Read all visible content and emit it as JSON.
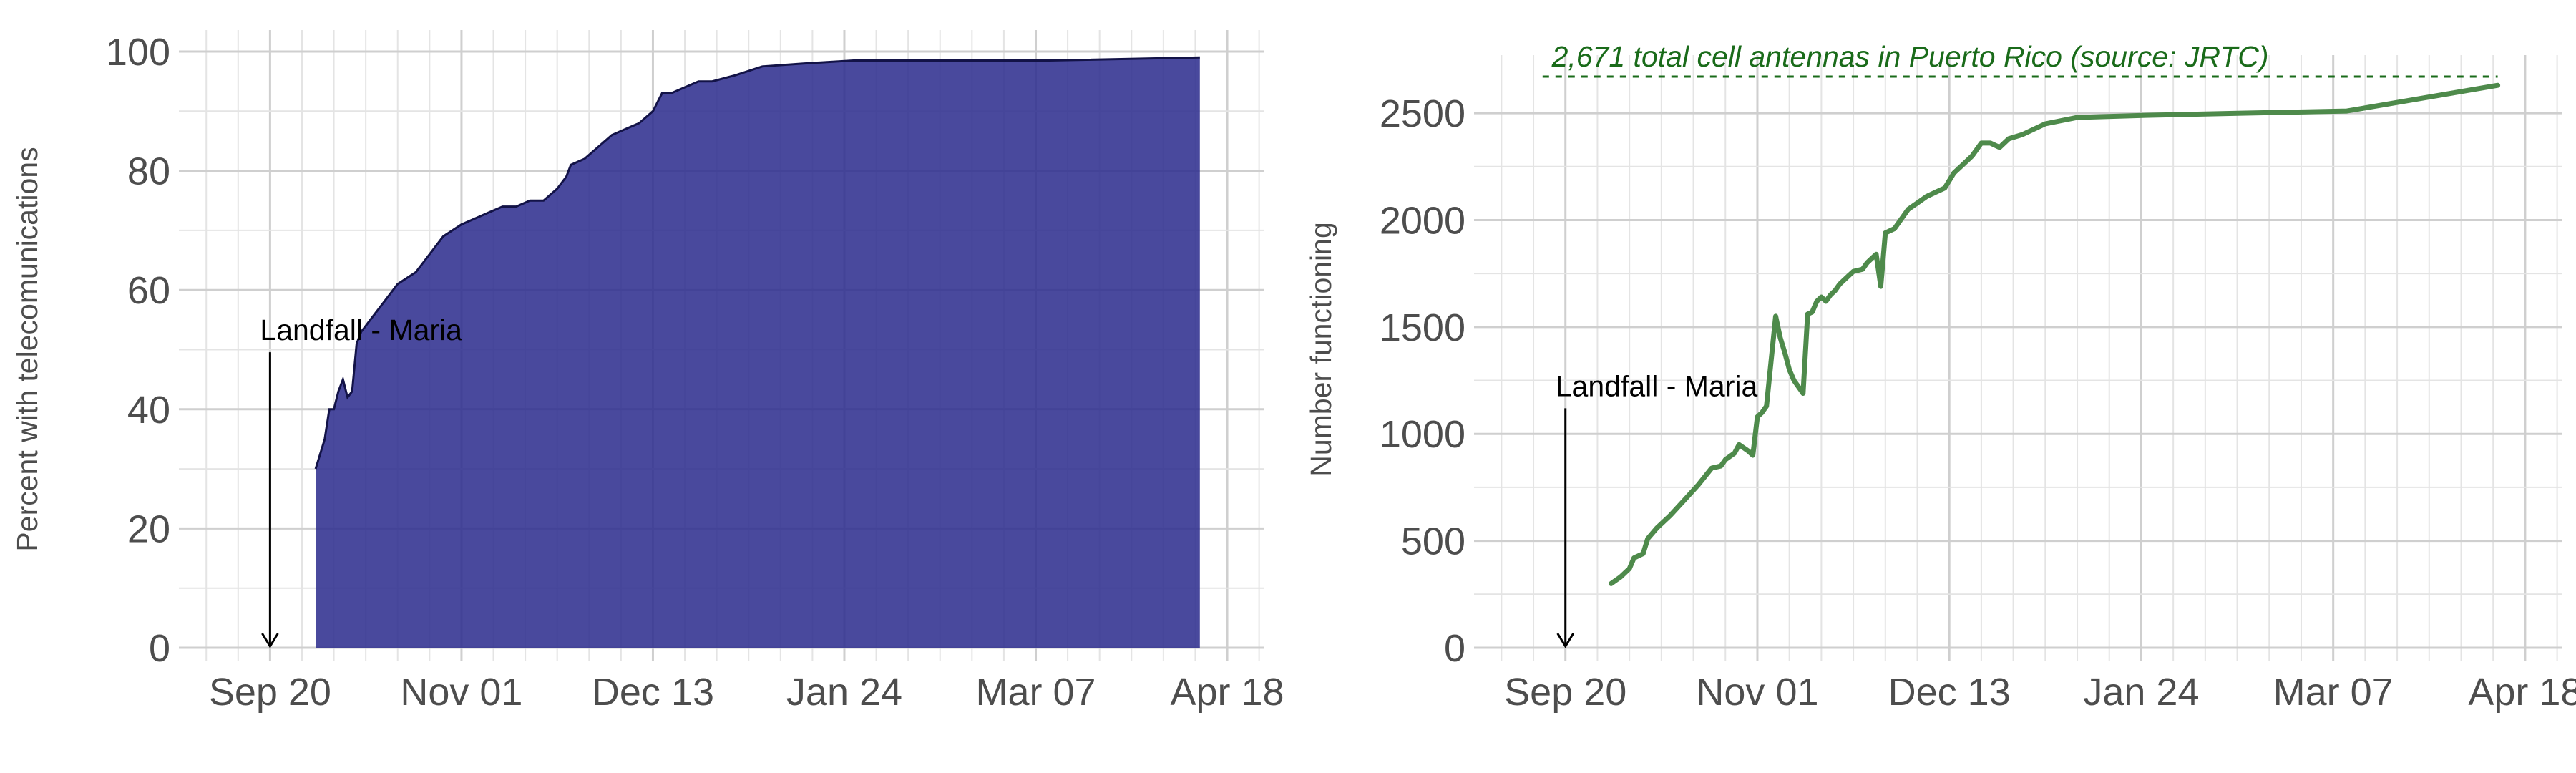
{
  "chart_data": [
    {
      "type": "area",
      "xlabel": "",
      "ylabel": "Percent with telecomunications",
      "x_tick_labels": [
        "Sep 20",
        "Nov 01",
        "Dec 13",
        "Jan 24",
        "Mar 07",
        "Apr 18"
      ],
      "y_tick_labels": [
        "0",
        "20",
        "40",
        "60",
        "80",
        "100"
      ],
      "ylim": [
        0,
        100
      ],
      "grid": true,
      "fill_color": "#2E2E8E",
      "line_color": "#131347",
      "annotation": {
        "label": "Landfall - Maria",
        "x": "Sep 20",
        "arrow": "down"
      },
      "series": [
        {
          "x": [
            "2017-09-30",
            "2017-10-02",
            "2017-10-03",
            "2017-10-04",
            "2017-10-05",
            "2017-10-06",
            "2017-10-07",
            "2017-10-08",
            "2017-10-09",
            "2017-10-10",
            "2017-10-11",
            "2017-10-12",
            "2017-10-14",
            "2017-10-16",
            "2017-10-18",
            "2017-10-20",
            "2017-10-22",
            "2017-10-24",
            "2017-10-26",
            "2017-10-28",
            "2017-10-30",
            "2017-11-01",
            "2017-11-04",
            "2017-11-07",
            "2017-11-10",
            "2017-11-13",
            "2017-11-16",
            "2017-11-19",
            "2017-11-22",
            "2017-11-24",
            "2017-11-25",
            "2017-11-28",
            "2017-12-01",
            "2017-12-04",
            "2017-12-07",
            "2017-12-10",
            "2017-12-13",
            "2017-12-15",
            "2017-12-17",
            "2017-12-20",
            "2017-12-23",
            "2017-12-26",
            "2017-12-31",
            "2018-01-06",
            "2018-01-15",
            "2018-01-26",
            "2018-02-15",
            "2018-03-10",
            "2018-04-12"
          ],
          "values": [
            30,
            35,
            40,
            40,
            43,
            45,
            42,
            43,
            51,
            53,
            54,
            55,
            57,
            59,
            61,
            62,
            63,
            65,
            67,
            69,
            70,
            71,
            72,
            73,
            74,
            74,
            75,
            75,
            77,
            79,
            81,
            82,
            84,
            86,
            87,
            88,
            90,
            93,
            93,
            94,
            95,
            95,
            96,
            97.5,
            98,
            98.5,
            98.5,
            98.5,
            99
          ]
        }
      ]
    },
    {
      "type": "line",
      "xlabel": "",
      "ylabel": "Number functioning",
      "x_tick_labels": [
        "Sep 20",
        "Nov 01",
        "Dec 13",
        "Jan 24",
        "Mar 07",
        "Apr 18"
      ],
      "y_tick_labels": [
        "0",
        "500",
        "1000",
        "1500",
        "2000",
        "2500"
      ],
      "ylim": [
        0,
        2671
      ],
      "grid": true,
      "line_color": "#4E8A4B",
      "annotation": {
        "label": "Landfall - Maria",
        "x": "Sep 20",
        "arrow": "down"
      },
      "reference_line": {
        "value": 2671,
        "label": "2,671 total cell antennas in Puerto Rico (source: JRTC)",
        "color": "#1A6B1A",
        "style": "dashed"
      },
      "series": [
        {
          "x": [
            "2017-09-30",
            "2017-10-02",
            "2017-10-04",
            "2017-10-05",
            "2017-10-07",
            "2017-10-08",
            "2017-10-10",
            "2017-10-13",
            "2017-10-16",
            "2017-10-19",
            "2017-10-22",
            "2017-10-24",
            "2017-10-25",
            "2017-10-27",
            "2017-10-28",
            "2017-10-30",
            "2017-10-31",
            "2017-11-01",
            "2017-11-02",
            "2017-11-03",
            "2017-11-05",
            "2017-11-06",
            "2017-11-07",
            "2017-11-08",
            "2017-11-09",
            "2017-11-11",
            "2017-11-12",
            "2017-11-13",
            "2017-11-14",
            "2017-11-15",
            "2017-11-16",
            "2017-11-17",
            "2017-11-18",
            "2017-11-19",
            "2017-11-20",
            "2017-11-21",
            "2017-11-22",
            "2017-11-24",
            "2017-11-25",
            "2017-11-26",
            "2017-11-27",
            "2017-11-28",
            "2017-11-29",
            "2017-11-30",
            "2017-12-01",
            "2017-12-02",
            "2017-12-03",
            "2017-12-04",
            "2017-12-06",
            "2017-12-08",
            "2017-12-10",
            "2017-12-12",
            "2017-12-14",
            "2017-12-16",
            "2017-12-18",
            "2017-12-20",
            "2017-12-22",
            "2017-12-24",
            "2017-12-26",
            "2017-12-29",
            "2018-01-03",
            "2018-01-10",
            "2018-01-25",
            "2018-02-15",
            "2018-03-10",
            "2018-04-12"
          ],
          "values": [
            300,
            330,
            370,
            420,
            440,
            510,
            560,
            620,
            690,
            760,
            840,
            850,
            880,
            910,
            950,
            920,
            900,
            1080,
            1100,
            1130,
            1550,
            1450,
            1380,
            1300,
            1250,
            1190,
            1560,
            1570,
            1620,
            1640,
            1620,
            1650,
            1670,
            1700,
            1720,
            1740,
            1760,
            1770,
            1800,
            1820,
            1840,
            1690,
            1940,
            1950,
            1960,
            1990,
            2020,
            2050,
            2080,
            2110,
            2130,
            2150,
            2220,
            2260,
            2300,
            2360,
            2360,
            2340,
            2380,
            2400,
            2450,
            2480,
            2490,
            2500,
            2510,
            2630
          ]
        }
      ]
    }
  ]
}
